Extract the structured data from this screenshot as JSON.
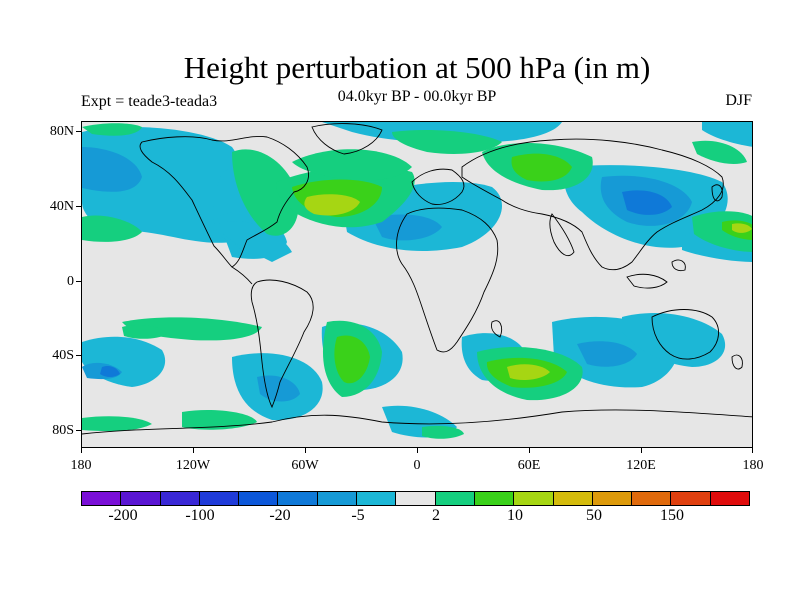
{
  "title": "Height perturbation at 500 hPa (in m)",
  "subtitle": "04.0kyr BP - 00.0kyr BP",
  "left_label": "Expt = teade3-teada3",
  "right_label": "DJF",
  "lat_labels": [
    "80N",
    "40N",
    "0",
    "40S",
    "80S"
  ],
  "lon_labels": [
    "180",
    "120W",
    "60W",
    "0",
    "60E",
    "120E",
    "180"
  ],
  "colorbar": {
    "colors": [
      "#7a0fd7",
      "#5a16d3",
      "#3a28d6",
      "#1f3bd9",
      "#0c57d9",
      "#0f79d8",
      "#169ad6",
      "#1cb7d6",
      "#e6e6e6",
      "#15cf7f",
      "#3ad11a",
      "#a6d613",
      "#d4bb0c",
      "#dd9a0b",
      "#e06a0c",
      "#e0400f",
      "#e00c0c"
    ],
    "labels": [
      "-200",
      "-100",
      "-20",
      "-5",
      "2",
      "10",
      "50",
      "150"
    ]
  },
  "map": {
    "background_color": "#e6e6e6",
    "projection": "cylindrical-equidistant",
    "lon_range": [
      -180,
      180
    ],
    "lat_range": [
      -90,
      90
    ]
  }
}
